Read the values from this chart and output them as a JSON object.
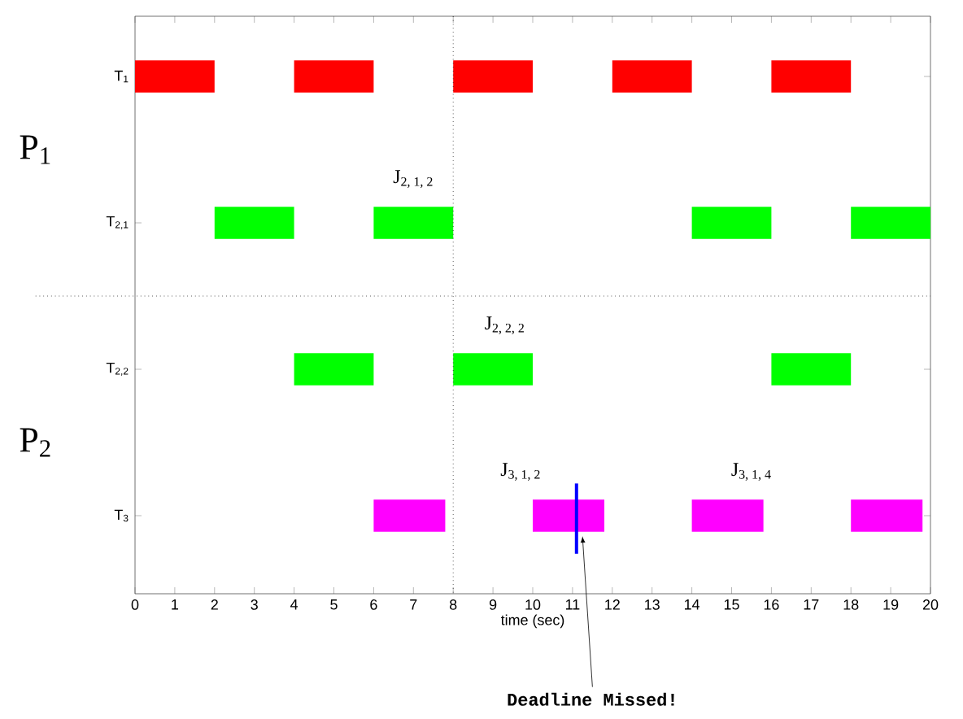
{
  "chart_data": {
    "type": "bar",
    "orientation": "horizontal",
    "categories": [
      "T$_{1}$",
      "T$_{2,1}$",
      "T$_{2,2}$",
      "T$_{3}$"
    ],
    "series": [
      {
        "base": [
          0,
          2,
          4,
          6
        ],
        "values": [
          2,
          2,
          2,
          1.8
        ],
        "colors": [
          "#ff0000",
          "#00ff00",
          "#00ff00",
          "#ff00ff"
        ]
      },
      {
        "base": [
          4,
          6,
          8,
          10
        ],
        "values": [
          2,
          2,
          2,
          1.8
        ],
        "colors": [
          "#ff0000",
          "#00ff00",
          "#00ff00",
          "#ff00ff"
        ]
      },
      {
        "base": [
          8,
          14,
          16,
          14
        ],
        "values": [
          2,
          2,
          2,
          1.8
        ],
        "colors": [
          "#ff0000",
          "#00ff00",
          "#00ff00",
          "#ff00ff"
        ]
      },
      {
        "base": [
          12,
          18,
          null,
          18
        ],
        "values": [
          2,
          2,
          null,
          1.8
        ],
        "colors": [
          "#ff0000",
          "#00ff00",
          "#00ff00",
          "#ff00ff"
        ]
      },
      {
        "base": [
          16,
          null,
          null,
          null
        ],
        "values": [
          2,
          null,
          null,
          null
        ],
        "colors": [
          "#ff0000",
          "#00ff00",
          "#00ff00",
          "#ff00ff"
        ]
      }
    ],
    "xlim": [
      0,
      20
    ],
    "xticks": [
      0,
      1,
      2,
      3,
      4,
      5,
      6,
      7,
      8,
      9,
      10,
      11,
      12,
      13,
      14,
      15,
      16,
      17,
      18,
      19,
      20
    ],
    "xlabel": "time (sec)",
    "ref_lines": [
      {
        "axis": "x",
        "value": 8,
        "line_style": "dotted",
        "color": "#000000"
      },
      {
        "axis": "x",
        "value": 11.1,
        "line_style": "solid",
        "color": "#0000ff",
        "label": "Deadline Missed!"
      }
    ],
    "annotations": [
      "P$_{1}$",
      "P$_{2}$",
      "J$_{2, 1, 2}$",
      "J$_{2, 2, 2}$",
      "J$_{3, 1, 2}$",
      "J$_{3, 1, 4}$"
    ]
  }
}
